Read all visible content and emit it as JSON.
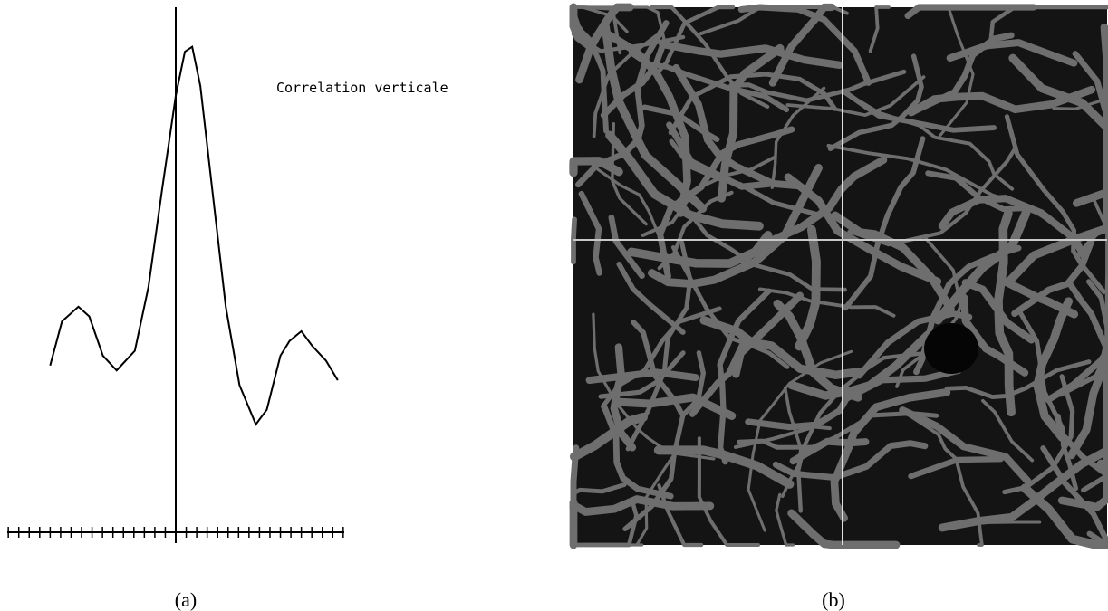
{
  "chart_data": {
    "type": "line",
    "annotation": "Correlation verticale",
    "x": [
      -12.0,
      -10.87,
      -9.3,
      -8.26,
      -6.96,
      -5.65,
      -3.91,
      -2.61,
      -1.3,
      0,
      0.87,
      1.57,
      2.35,
      3.48,
      4.78,
      6.09,
      7.65,
      8.7,
      10.0,
      10.87,
      12.0,
      13.04,
      14.35,
      15.48
    ],
    "series": [
      {
        "color": "#000000",
        "values": [
          0.34,
          0.43,
          0.46,
          0.44,
          0.36,
          0.33,
          0.37,
          0.5,
          0.7,
          0.89,
          0.98,
          0.99,
          0.91,
          0.7,
          0.46,
          0.3,
          0.22,
          0.25,
          0.36,
          0.39,
          0.41,
          0.38,
          0.35,
          0.31
        ]
      }
    ],
    "xlim": [
      -16.1,
      16.1
    ],
    "ylim": [
      0,
      1.03
    ],
    "xticks": [
      -16,
      -15,
      -14,
      -13,
      -12,
      -11,
      -10,
      -9,
      -8,
      -7,
      -6,
      -5,
      -4,
      -3,
      -2,
      -1,
      0,
      1,
      2,
      3,
      4,
      5,
      6,
      7,
      8,
      9,
      10,
      11,
      12,
      13,
      14,
      15,
      16
    ]
  },
  "captions": [
    "(a)",
    "(b)"
  ]
}
